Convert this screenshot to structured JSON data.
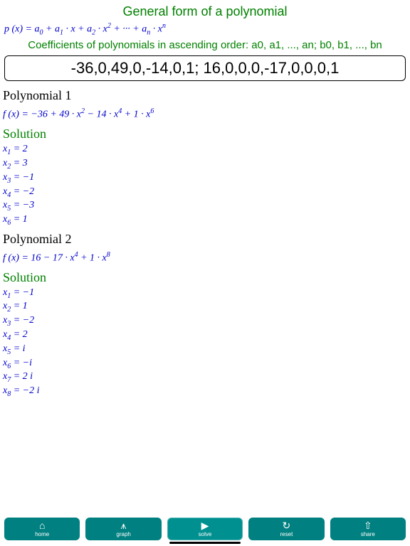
{
  "header": {
    "title": "General form of a polynomial",
    "coeff_label": "Coefficients of polynomials in ascending order: a0, a1, ..., an; b0, b1, ..., bn"
  },
  "general_form": {
    "prefix": "p (",
    "var": "x",
    "mid": ") = ",
    "terms": "a₀ + a₁ · x + a₂ · x² + ··· + aₙ · xⁿ"
  },
  "input_value": "-36,0,49,0,-14,0,1; 16,0,0,0,-17,0,0,0,1",
  "poly1": {
    "title": "Polynomial 1",
    "formula_prefix": "f (x) = ",
    "formula": "−36 + 49 · x² − 14 · x⁴ + 1 · x⁶",
    "solution_label": "Solution",
    "roots": [
      {
        "label": "x₁ = ",
        "val": "2"
      },
      {
        "label": "x₂ = ",
        "val": "3"
      },
      {
        "label": "x₃ = ",
        "val": "−1"
      },
      {
        "label": "x₄ = ",
        "val": "−2"
      },
      {
        "label": "x₅ = ",
        "val": "−3"
      },
      {
        "label": "x₆ = ",
        "val": "1"
      }
    ]
  },
  "poly2": {
    "title": "Polynomial 2",
    "formula_prefix": "f (x) = ",
    "formula": "16 − 17 · x⁴ + 1 · x⁸",
    "solution_label": "Solution",
    "roots": [
      {
        "label": "x₁ = ",
        "val": "−1"
      },
      {
        "label": "x₂ = ",
        "val": "1"
      },
      {
        "label": "x₃ = ",
        "val": "−2"
      },
      {
        "label": "x₄ = ",
        "val": "2"
      },
      {
        "label": "x₅ = ",
        "val": "i"
      },
      {
        "label": "x₆ = ",
        "val": "−i"
      },
      {
        "label": "x₇ = ",
        "val": "2 i"
      },
      {
        "label": "x₈ = ",
        "val": "−2 i"
      }
    ]
  },
  "toolbar": {
    "items": [
      {
        "name": "home",
        "icon": "⌂",
        "label": "home"
      },
      {
        "name": "graph",
        "icon": "⩚",
        "label": "graph"
      },
      {
        "name": "solve",
        "icon": "▶",
        "label": "solve"
      },
      {
        "name": "reset",
        "icon": "↻",
        "label": "reset"
      },
      {
        "name": "share",
        "icon": "⇧",
        "label": "share"
      }
    ]
  },
  "colors": {
    "title_green": "#008000",
    "math_blue": "#0000cc",
    "toolbar_bg": "#008080",
    "text_black": "#000000",
    "background": "#ffffff"
  }
}
